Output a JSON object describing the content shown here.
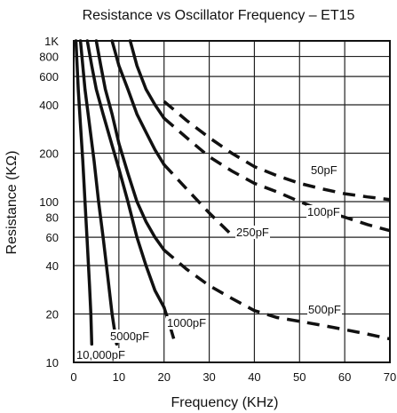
{
  "chart_data": {
    "type": "line",
    "title": "Resistance vs Oscillator Frequency – ET15",
    "xlabel": "Frequency (KHz)",
    "ylabel": "Resistance (KΩ)",
    "xlim": [
      0,
      70
    ],
    "ylim": [
      10,
      1000
    ],
    "y_scale": "log",
    "grid": true,
    "x_ticks": [
      0,
      10,
      20,
      30,
      40,
      50,
      60,
      70
    ],
    "x_tick_labels": [
      "0",
      "10",
      "20",
      "30",
      "40",
      "50",
      "60",
      "70"
    ],
    "y_ticks": [
      10,
      20,
      40,
      60,
      80,
      100,
      200,
      400,
      600,
      800,
      1000
    ],
    "y_tick_labels": [
      "10",
      "20",
      "40",
      "60",
      "80",
      "100",
      "200",
      "400",
      "600",
      "800",
      "1K"
    ],
    "line_style_note": "solid below 20 KHz, dashed above 20 KHz",
    "series": [
      {
        "name": "10,000pF",
        "points": [
          [
            0.5,
            1000
          ],
          [
            1,
            500
          ],
          [
            1.5,
            300
          ],
          [
            2,
            180
          ],
          [
            2.5,
            100
          ],
          [
            3,
            55
          ],
          [
            3.5,
            30
          ],
          [
            3.8,
            20
          ],
          [
            4.0,
            13
          ]
        ]
      },
      {
        "name": "5000pF",
        "points": [
          [
            1.5,
            1000
          ],
          [
            2.5,
            500
          ],
          [
            3.5,
            300
          ],
          [
            4.5,
            180
          ],
          [
            5.5,
            100
          ],
          [
            6.5,
            60
          ],
          [
            7.5,
            35
          ],
          [
            8.5,
            20
          ],
          [
            9.5,
            13
          ]
        ]
      },
      {
        "name": "1000pF",
        "points": [
          [
            3,
            1000
          ],
          [
            4,
            700
          ],
          [
            5,
            500
          ],
          [
            6.5,
            350
          ],
          [
            8,
            250
          ],
          [
            10,
            160
          ],
          [
            12,
            100
          ],
          [
            14,
            60
          ],
          [
            16,
            40
          ],
          [
            18,
            28
          ],
          [
            20,
            22
          ],
          [
            21,
            18
          ],
          [
            22.5,
            13
          ]
        ]
      },
      {
        "name": "500pF",
        "points": [
          [
            5,
            1000
          ],
          [
            6,
            700
          ],
          [
            7,
            500
          ],
          [
            8.5,
            350
          ],
          [
            10,
            230
          ],
          [
            12,
            150
          ],
          [
            14,
            100
          ],
          [
            16,
            75
          ],
          [
            18,
            60
          ],
          [
            20,
            50
          ],
          [
            25,
            38
          ],
          [
            30,
            30
          ],
          [
            35,
            25
          ],
          [
            40,
            21
          ],
          [
            45,
            19
          ],
          [
            50,
            18
          ],
          [
            55,
            17
          ],
          [
            60,
            16
          ],
          [
            65,
            15
          ],
          [
            70,
            14
          ]
        ]
      },
      {
        "name": "250pF",
        "points": [
          [
            8.5,
            1000
          ],
          [
            10,
            700
          ],
          [
            12,
            500
          ],
          [
            14,
            350
          ],
          [
            16,
            270
          ],
          [
            18,
            210
          ],
          [
            20,
            170
          ],
          [
            25,
            120
          ],
          [
            30,
            85
          ],
          [
            35,
            62
          ]
        ]
      },
      {
        "name": "100pF",
        "points": [
          [
            12.5,
            1000
          ],
          [
            14,
            700
          ],
          [
            16,
            500
          ],
          [
            18,
            400
          ],
          [
            20,
            330
          ],
          [
            25,
            250
          ],
          [
            30,
            190
          ],
          [
            35,
            155
          ],
          [
            40,
            130
          ],
          [
            45,
            115
          ],
          [
            50,
            100
          ],
          [
            55,
            88
          ],
          [
            60,
            80
          ],
          [
            65,
            72
          ],
          [
            70,
            66
          ]
        ]
      },
      {
        "name": "50pF",
        "points": [
          [
            20,
            420
          ],
          [
            25,
            320
          ],
          [
            30,
            250
          ],
          [
            35,
            200
          ],
          [
            40,
            165
          ],
          [
            45,
            145
          ],
          [
            50,
            130
          ],
          [
            55,
            120
          ],
          [
            60,
            112
          ],
          [
            65,
            107
          ],
          [
            70,
            103
          ]
        ]
      }
    ],
    "annotations": [
      "50pF",
      "100pF",
      "250pF",
      "500pF",
      "1000pF",
      "5000pF",
      "10,000pF"
    ]
  }
}
